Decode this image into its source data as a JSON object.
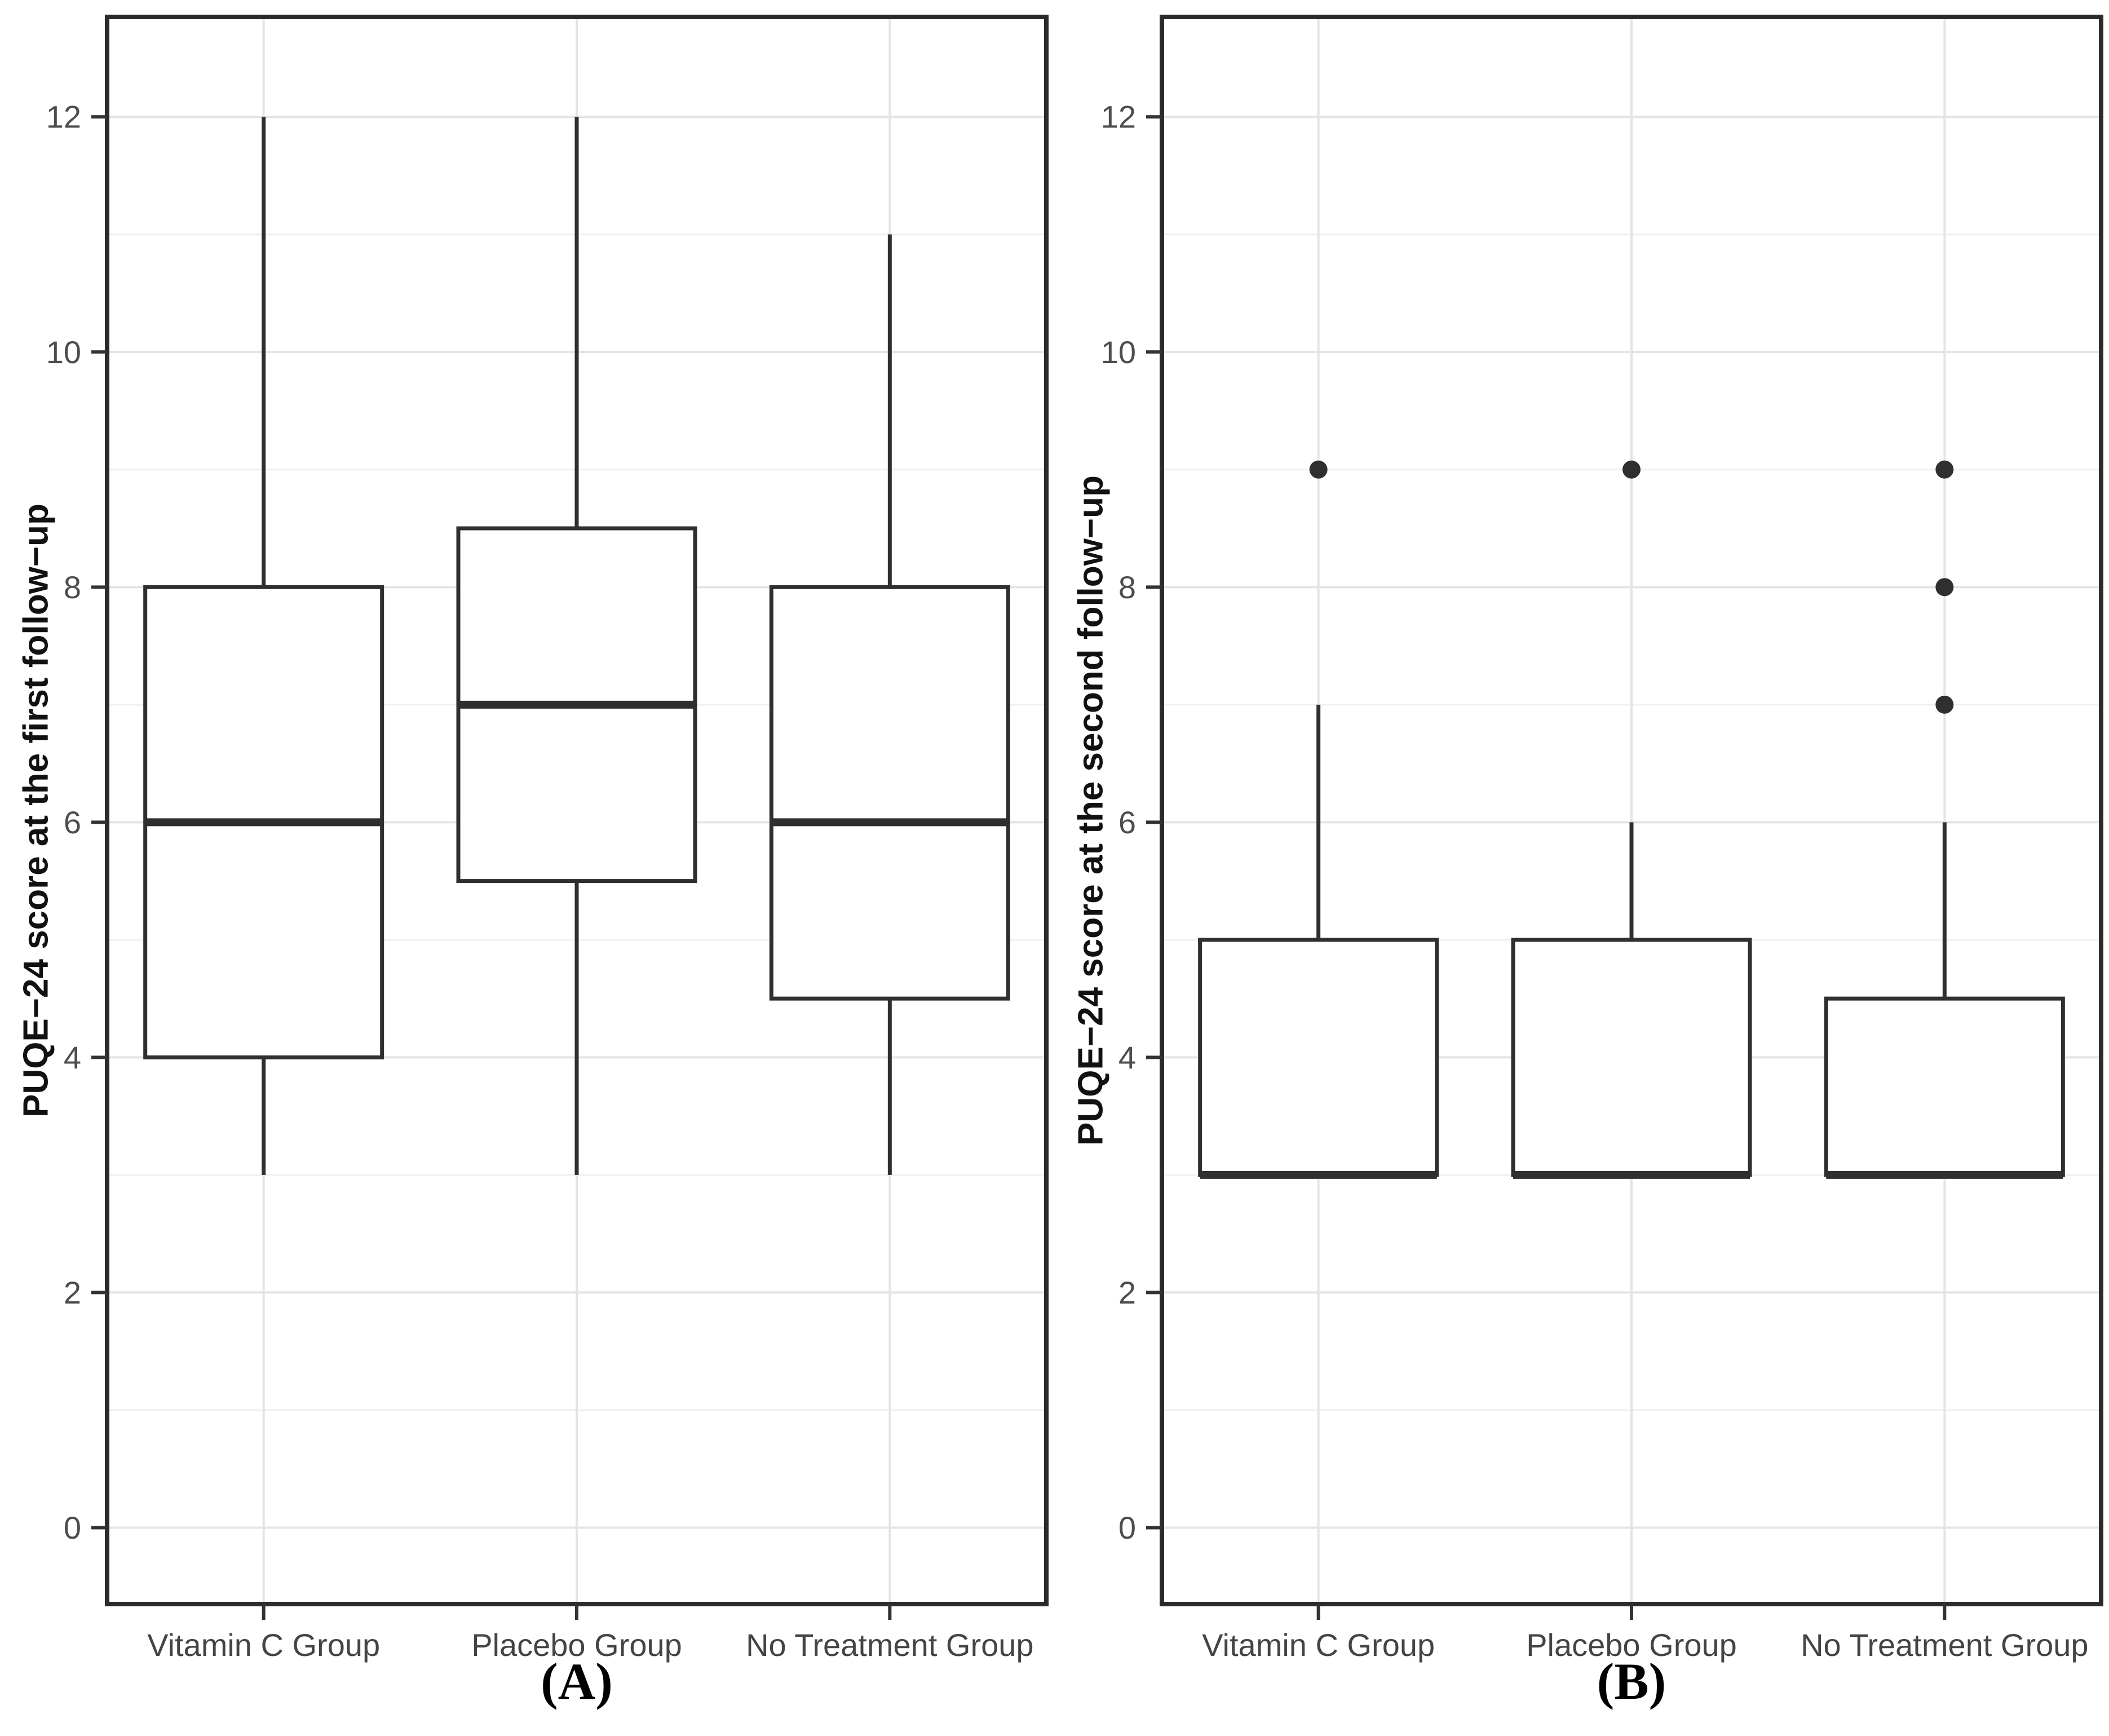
{
  "chart_data": [
    {
      "type": "boxplot",
      "panel": "A",
      "caption": "(A)",
      "title": "",
      "xlabel": "",
      "ylabel": "PUQE−24 score at the first follow−up",
      "categories": [
        "Vitamin C Group",
        "Placebo Group",
        "No Treatment Group"
      ],
      "yticks": [
        0,
        2,
        4,
        6,
        8,
        10,
        12
      ],
      "minor_gridlines_at": [
        1,
        3,
        5,
        7,
        9,
        11
      ],
      "ylim": [
        -0.65,
        12.85
      ],
      "grid": true,
      "legend": false,
      "series": [
        {
          "group": "Vitamin C Group",
          "whisker_low": 3,
          "q1": 4,
          "median": 6,
          "q3": 8,
          "whisker_high": 12,
          "outliers": []
        },
        {
          "group": "Placebo Group",
          "whisker_low": 3,
          "q1": 5.5,
          "median": 7,
          "q3": 8.5,
          "whisker_high": 12,
          "outliers": []
        },
        {
          "group": "No Treatment Group",
          "whisker_low": 3,
          "q1": 4.5,
          "median": 6,
          "q3": 8,
          "whisker_high": 11,
          "outliers": []
        }
      ]
    },
    {
      "type": "boxplot",
      "panel": "B",
      "caption": "(B)",
      "title": "",
      "xlabel": "",
      "ylabel": "PUQE−24 score at the second follow−up",
      "categories": [
        "Vitamin C Group",
        "Placebo Group",
        "No Treatment Group"
      ],
      "yticks": [
        0,
        2,
        4,
        6,
        8,
        10,
        12
      ],
      "minor_gridlines_at": [
        1,
        3,
        5,
        7,
        9,
        11
      ],
      "ylim": [
        -0.65,
        12.85
      ],
      "grid": true,
      "legend": false,
      "series": [
        {
          "group": "Vitamin C Group",
          "whisker_low": 3,
          "q1": 3,
          "median": 3,
          "q3": 5,
          "whisker_high": 7,
          "outliers": [
            9
          ]
        },
        {
          "group": "Placebo Group",
          "whisker_low": 3,
          "q1": 3,
          "median": 3,
          "q3": 5,
          "whisker_high": 6,
          "outliers": [
            9
          ]
        },
        {
          "group": "No Treatment Group",
          "whisker_low": 3,
          "q1": 3,
          "median": 3,
          "q3": 4.5,
          "whisker_high": 6,
          "outliers": [
            7,
            8,
            9
          ]
        }
      ]
    }
  ],
  "style": {
    "background": "#ffffff",
    "panel_background": "#ffffff",
    "panel_border_color": "#2b2b2b",
    "box_color": "#2f2f2f",
    "box_fill": "#ffffff",
    "outlier_color": "#2f2f2f",
    "grid_major_color": "#e4e4e4",
    "grid_minor_color": "#efefef",
    "tick_color": "#333333",
    "tick_label_color": "#4d4d4d",
    "category_label_color": "#444444",
    "axis_title_color": "#111111",
    "caption_color": "#000000"
  }
}
